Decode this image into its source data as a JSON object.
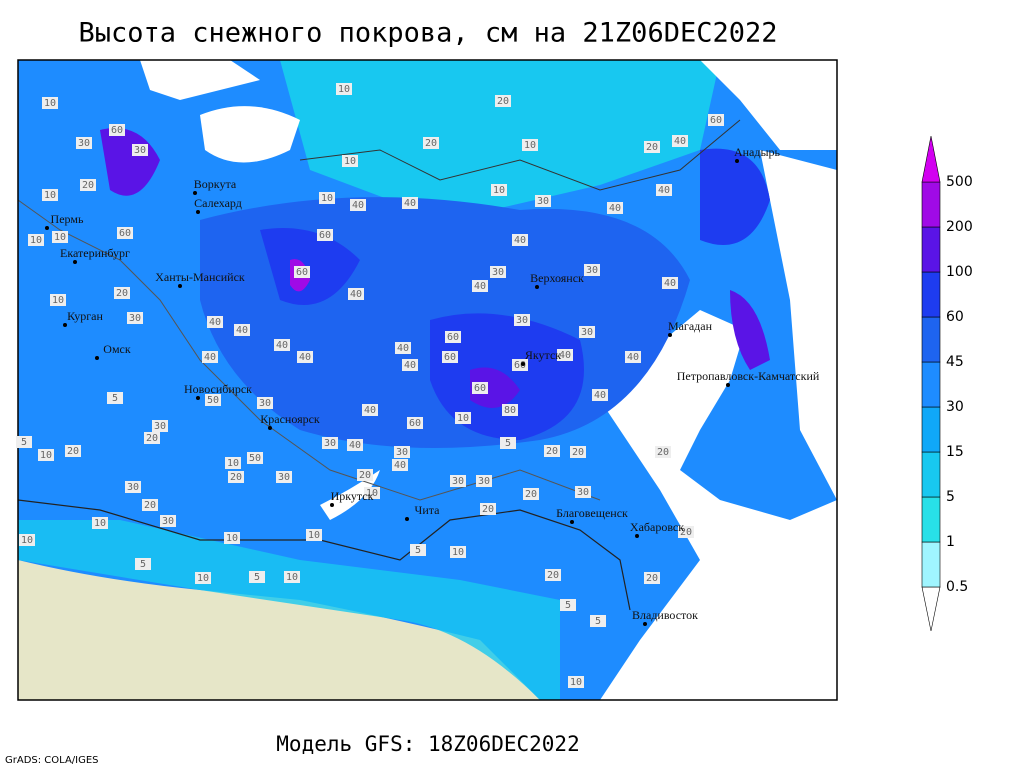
{
  "title": "Высота снежного покрова, см на 21Z06DEC2022",
  "footer": "Модель GFS: 18Z06DEC2022",
  "credit": "GrADS: COLA/IGES",
  "cities": [
    "Воркута",
    "Салехард",
    "Пермь",
    "Екатеринбург",
    "Ханты-Мансийск",
    "Курган",
    "Омск",
    "Новосибирск",
    "Красноярск",
    "Иркутск",
    "Чита",
    "Верхоянск",
    "Якутск",
    "Магадан",
    "Анадырь",
    "Петропавловск-Камчатский",
    "Благовещенск",
    "Хабаровск",
    "Владивосток"
  ],
  "contour_labels": [
    10,
    20,
    10,
    20,
    10,
    10,
    60,
    30,
    30,
    10,
    20,
    10,
    10,
    60,
    10,
    20,
    30,
    10,
    40,
    40,
    60,
    60,
    40,
    40,
    40,
    40,
    40,
    40,
    40,
    40,
    60,
    60,
    60,
    60,
    80,
    30,
    40,
    30,
    30,
    10,
    40,
    40,
    30,
    40,
    40,
    60,
    20,
    40,
    40,
    40,
    40,
    30,
    10,
    60,
    40,
    40,
    30,
    40,
    30,
    20,
    30,
    50,
    20,
    30,
    20,
    10,
    5,
    5,
    30,
    20,
    10,
    20,
    50,
    30,
    30,
    30,
    20,
    20,
    20,
    30,
    20,
    10,
    10,
    10,
    5,
    10,
    5,
    10,
    20,
    5,
    5,
    20,
    20,
    20,
    10,
    5,
    10,
    10,
    5,
    10,
    30
  ],
  "legend": {
    "levels": [
      0.5,
      1,
      5,
      15,
      30,
      45,
      60,
      100,
      200,
      500
    ],
    "colors": [
      "#ffffff",
      "#a0f5ff",
      "#28e0e8",
      "#18c8f0",
      "#10a8f8",
      "#1e8cff",
      "#1e64f0",
      "#1e3cf0",
      "#5a14e6",
      "#a00ae6",
      "#d200f0"
    ]
  }
}
